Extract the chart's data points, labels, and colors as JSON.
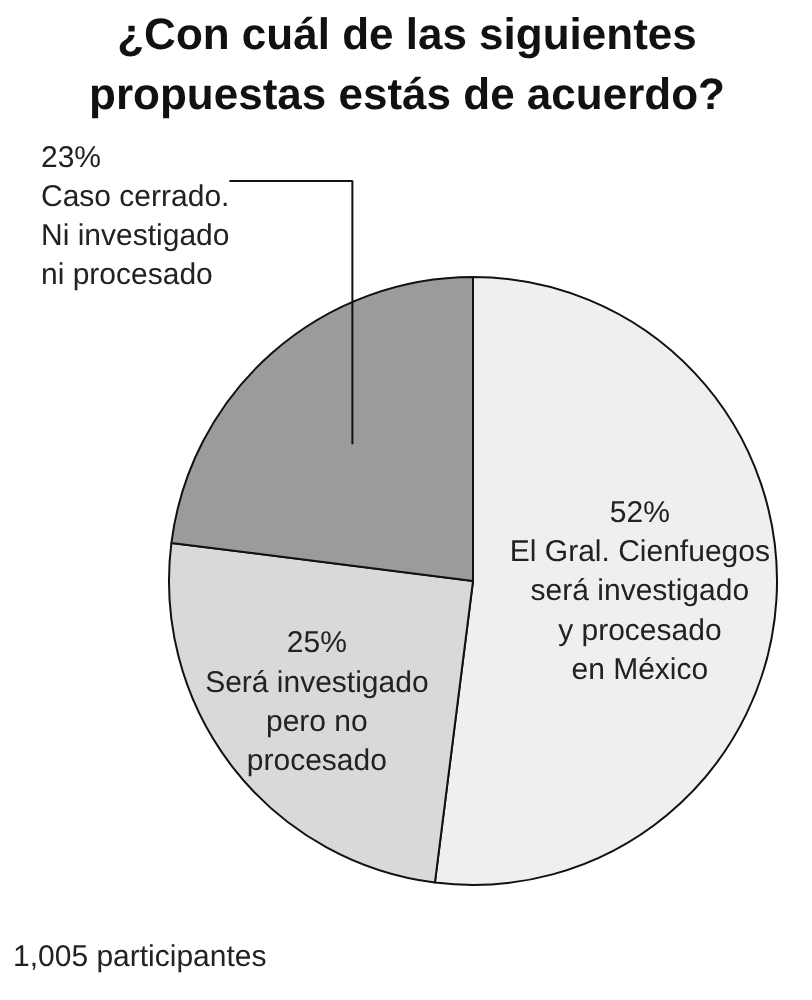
{
  "chart_data": {
    "type": "pie",
    "title": "¿Con cuál de las siguientes\npropuestas estás de acuerdo?",
    "categories": [
      "El Gral. Cienfuegos\nserá investigado\ny procesado\nen México",
      "Será investigado\npero no\nprocesado",
      "Caso cerrado.\nNi investigado\nni procesado"
    ],
    "values": [
      52,
      25,
      23
    ],
    "colors": [
      "#efefef",
      "#d9d9d9",
      "#9b9b9b"
    ],
    "value_labels": [
      "52%",
      "25%",
      "23%"
    ],
    "annotations": [
      "1,005 participantes"
    ]
  }
}
